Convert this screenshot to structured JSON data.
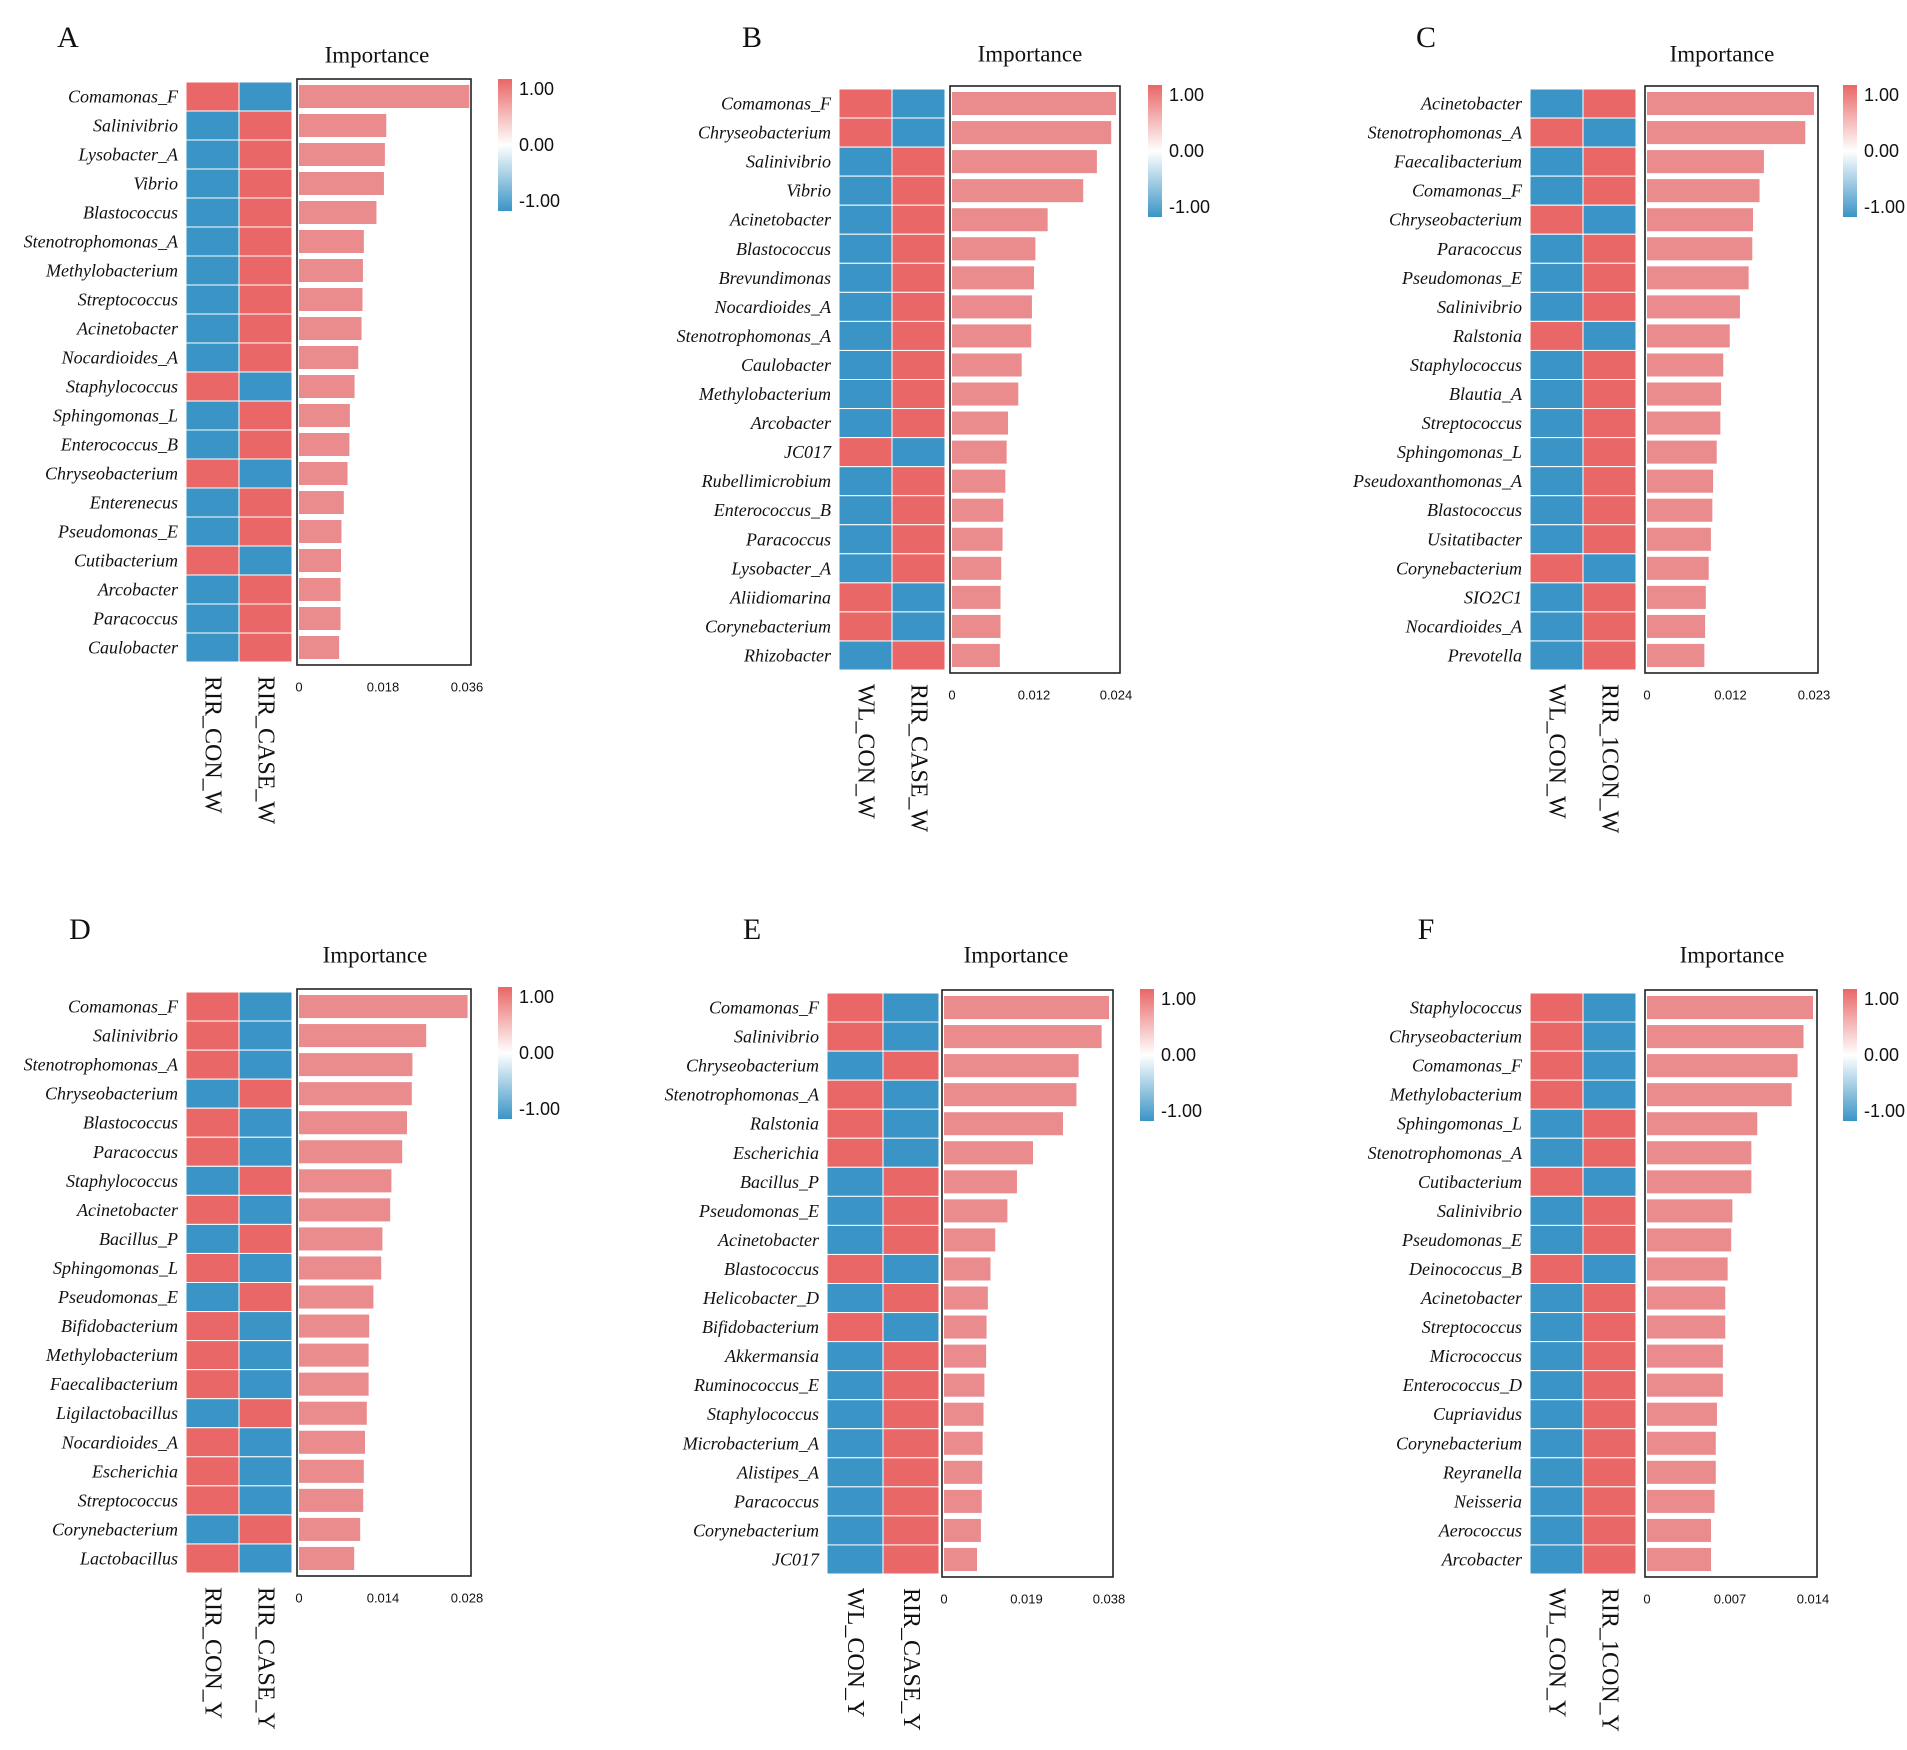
{
  "colors": {
    "pos": "#e96767",
    "neg": "#3a95c6",
    "bar": "#ea8b8e",
    "frame": "#222222"
  },
  "legend": {
    "max": "1.00",
    "mid": "0.00",
    "min": "-1.00"
  },
  "chart_data": [
    {
      "panel": "A",
      "type": "bar",
      "title": "Importance",
      "xlim": [
        0,
        0.036
      ],
      "ticks": [
        "0",
        "0.018",
        "0.036"
      ],
      "groups": [
        "RIR_CON_W",
        "RIR_CASE_W"
      ],
      "categories": [
        "Comamonas_F",
        "Salinivibrio",
        "Lysobacter_A",
        "Vibrio",
        "Blastococcus",
        "Stenotrophomonas_A",
        "Methylobacterium",
        "Streptococcus",
        "Acinetobacter",
        "Nocardioides_A",
        "Staphylococcus",
        "Sphingomonas_L",
        "Enterococcus_B",
        "Chryseobacterium",
        "Enterenecus",
        "Pseudomonas_E",
        "Cutibacterium",
        "Arcobacter",
        "Paracoccus",
        "Caulobacter"
      ],
      "values": [
        0.0365,
        0.0187,
        0.0184,
        0.0182,
        0.0166,
        0.0139,
        0.0137,
        0.0136,
        0.0134,
        0.0127,
        0.0119,
        0.0109,
        0.0108,
        0.0104,
        0.0096,
        0.0091,
        0.009,
        0.0089,
        0.0089,
        0.0086
      ],
      "heatmap": [
        1,
        -1,
        -1,
        -1,
        -1,
        -1,
        -1,
        -1,
        -1,
        -1,
        1,
        -1,
        -1,
        1,
        -1,
        -1,
        1,
        -1,
        -1,
        -1
      ]
    },
    {
      "panel": "B",
      "type": "bar",
      "title": "Importance",
      "xlim": [
        0,
        0.024
      ],
      "ticks": [
        "0",
        "0.012",
        "0.024"
      ],
      "groups": [
        "WL_CON_W",
        "RIR_CASE_W"
      ],
      "categories": [
        "Comamonas_F",
        "Chryseobacterium",
        "Salinivibrio",
        "Vibrio",
        "Acinetobacter",
        "Blastococcus",
        "Brevundimonas",
        "Nocardioides_A",
        "Stenotrophomonas_A",
        "Caulobacter",
        "Methylobacterium",
        "Arcobacter",
        "JC017",
        "Rubellimicrobium",
        "Enterococcus_B",
        "Paracoccus",
        "Lysobacter_A",
        "Aliidiomarina",
        "Corynebacterium",
        "Rhizobacter"
      ],
      "values": [
        0.024,
        0.0233,
        0.0212,
        0.0192,
        0.014,
        0.0122,
        0.012,
        0.0117,
        0.0116,
        0.0102,
        0.0097,
        0.0082,
        0.008,
        0.0078,
        0.0075,
        0.0074,
        0.0072,
        0.0071,
        0.0071,
        0.007
      ],
      "heatmap": [
        1,
        1,
        -1,
        -1,
        -1,
        -1,
        -1,
        -1,
        -1,
        -1,
        -1,
        -1,
        1,
        -1,
        -1,
        -1,
        -1,
        1,
        1,
        -1
      ]
    },
    {
      "panel": "C",
      "type": "bar",
      "title": "Importance",
      "xlim": [
        0,
        0.023
      ],
      "ticks": [
        "0",
        "0.012",
        "0.023"
      ],
      "groups": [
        "WL_CON_W",
        "RIR_1CON_W"
      ],
      "categories": [
        "Acinetobacter",
        "Stenotrophomonas_A",
        "Faecalibacterium",
        "Comamonas_F",
        "Chryseobacterium",
        "Paracoccus",
        "Pseudomonas_E",
        "Salinivibrio",
        "Ralstonia",
        "Staphylococcus",
        "Blautia_A",
        "Streptococcus",
        "Sphingomonas_L",
        "Pseudoxanthomonas_A",
        "Blastococcus",
        "Usitatibacter",
        "Corynebacterium",
        "SIO2C1",
        "Nocardioides_A",
        "Prevotella"
      ],
      "values": [
        0.023,
        0.0218,
        0.0161,
        0.0155,
        0.0146,
        0.0145,
        0.014,
        0.0128,
        0.0114,
        0.0105,
        0.0102,
        0.0101,
        0.0096,
        0.0091,
        0.009,
        0.0088,
        0.0085,
        0.0081,
        0.008,
        0.0079
      ],
      "heatmap": [
        -1,
        1,
        -1,
        -1,
        1,
        -1,
        -1,
        -1,
        1,
        -1,
        -1,
        -1,
        -1,
        -1,
        -1,
        -1,
        1,
        -1,
        -1,
        -1
      ]
    },
    {
      "panel": "D",
      "type": "bar",
      "title": "Importance",
      "xlim": [
        0,
        0.028
      ],
      "ticks": [
        "0",
        "0.014",
        "0.028"
      ],
      "groups": [
        "RIR_CON_Y",
        "RIR_CASE_Y"
      ],
      "categories": [
        "Comamonas_F",
        "Salinivibrio",
        "Stenotrophomonas_A",
        "Chryseobacterium",
        "Blastococcus",
        "Paracoccus",
        "Staphylococcus",
        "Acinetobacter",
        "Bacillus_P",
        "Sphingomonas_L",
        "Pseudomonas_E",
        "Bifidobacterium",
        "Methylobacterium",
        "Faecalibacterium",
        "Ligilactobacillus",
        "Nocardioides_A",
        "Escherichia",
        "Streptococcus",
        "Corynebacterium",
        "Lactobacillus"
      ],
      "values": [
        0.0281,
        0.0212,
        0.0189,
        0.0188,
        0.018,
        0.0172,
        0.0154,
        0.0152,
        0.0139,
        0.0137,
        0.0124,
        0.0117,
        0.0116,
        0.0116,
        0.0113,
        0.011,
        0.0108,
        0.0107,
        0.0102,
        0.0092
      ],
      "heatmap": [
        1,
        1,
        1,
        -1,
        1,
        1,
        -1,
        1,
        -1,
        1,
        -1,
        1,
        1,
        1,
        -1,
        1,
        1,
        1,
        -1,
        1
      ]
    },
    {
      "panel": "E",
      "type": "bar",
      "title": "Importance",
      "xlim": [
        0,
        0.038
      ],
      "ticks": [
        "0",
        "0.019",
        "0.038"
      ],
      "groups": [
        "WL_CON_Y",
        "RIR_CASE_Y"
      ],
      "categories": [
        "Comamonas_F",
        "Salinivibrio",
        "Chryseobacterium",
        "Stenotrophomonas_A",
        "Ralstonia",
        "Escherichia",
        "Bacillus_P",
        "Pseudomonas_E",
        "Acinetobacter",
        "Blastococcus",
        "Helicobacter_D",
        "Bifidobacterium",
        "Akkermansia",
        "Ruminococcus_E",
        "Staphylococcus",
        "Microbacterium_A",
        "Alistipes_A",
        "Paracoccus",
        "Corynebacterium",
        "JC017"
      ],
      "values": [
        0.038,
        0.0363,
        0.031,
        0.0305,
        0.0274,
        0.0205,
        0.0168,
        0.0146,
        0.0118,
        0.0107,
        0.0101,
        0.0098,
        0.0097,
        0.0093,
        0.0091,
        0.0089,
        0.0088,
        0.0087,
        0.0085,
        0.0076
      ],
      "heatmap": [
        1,
        1,
        -1,
        1,
        1,
        1,
        -1,
        -1,
        -1,
        1,
        -1,
        1,
        -1,
        -1,
        -1,
        -1,
        -1,
        -1,
        -1,
        -1
      ]
    },
    {
      "panel": "F",
      "type": "bar",
      "title": "Importance",
      "xlim": [
        0,
        0.014
      ],
      "ticks": [
        "0",
        "0.007",
        "0.014"
      ],
      "groups": [
        "WL_CON_Y",
        "RIR_1CON_Y"
      ],
      "categories": [
        "Staphylococcus",
        "Chryseobacterium",
        "Comamonas_F",
        "Methylobacterium",
        "Sphingomonas_L",
        "Stenotrophomonas_A",
        "Cutibacterium",
        "Salinivibrio",
        "Pseudomonas_E",
        "Deinococcus_B",
        "Acinetobacter",
        "Streptococcus",
        "Micrococcus",
        "Enterococcus_D",
        "Cupriavidus",
        "Corynebacterium",
        "Reyranella",
        "Neisseria",
        "Aerococcus",
        "Arcobacter"
      ],
      "values": [
        0.014,
        0.0132,
        0.0127,
        0.0122,
        0.0093,
        0.0088,
        0.0088,
        0.0072,
        0.0071,
        0.0068,
        0.0066,
        0.0066,
        0.0064,
        0.0064,
        0.0059,
        0.0058,
        0.0058,
        0.0057,
        0.0054,
        0.0054
      ],
      "heatmap": [
        1,
        1,
        1,
        1,
        -1,
        -1,
        1,
        -1,
        -1,
        1,
        -1,
        -1,
        -1,
        -1,
        -1,
        -1,
        -1,
        -1,
        -1,
        -1
      ]
    }
  ]
}
